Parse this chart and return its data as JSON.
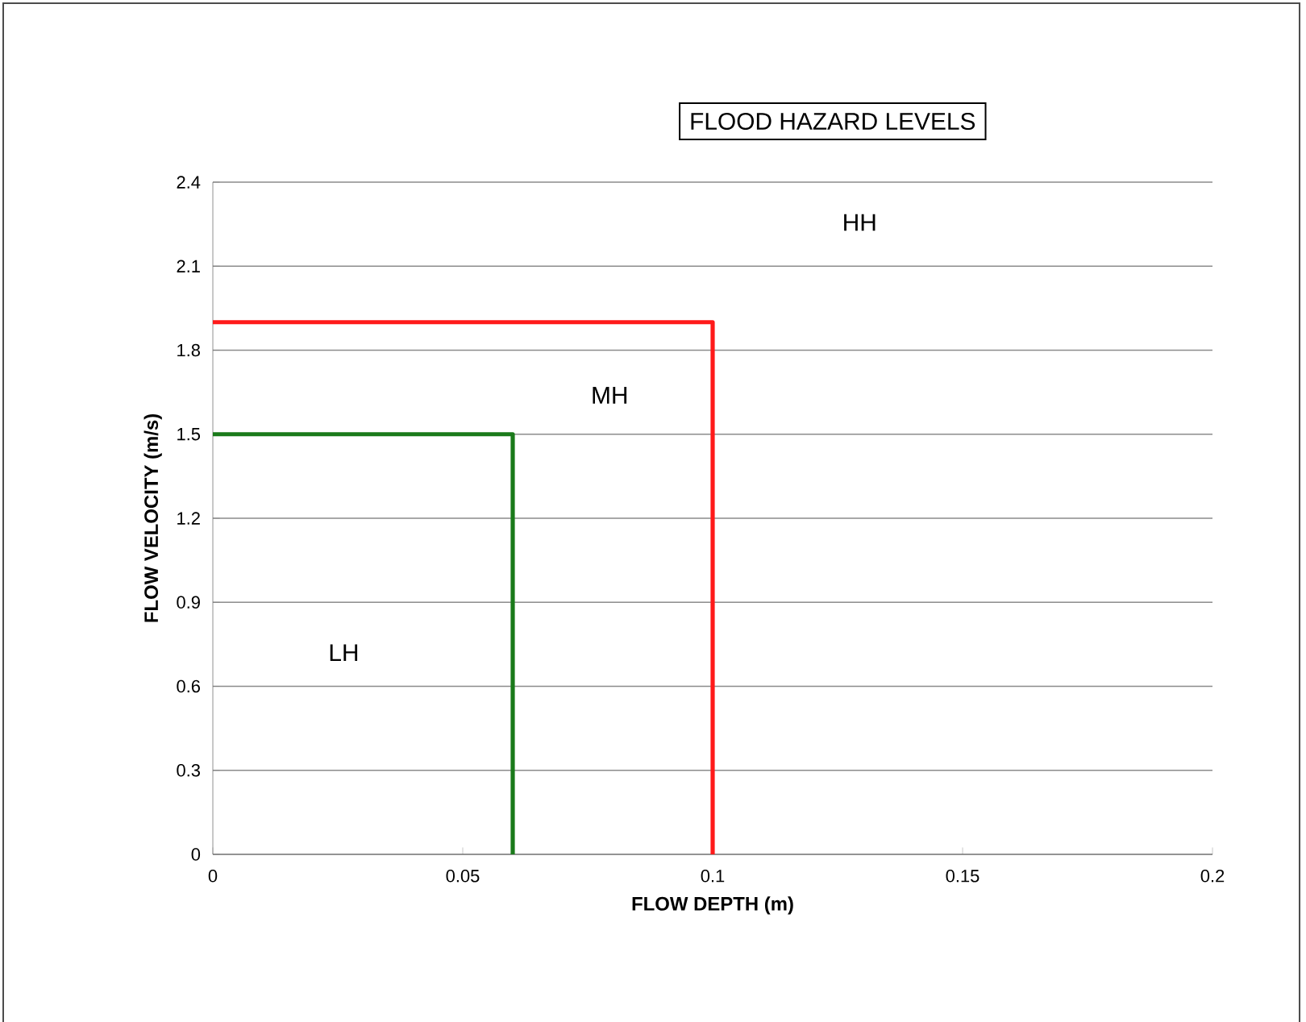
{
  "chart_data": {
    "type": "line",
    "title": "FLOOD HAZARD LEVELS",
    "xlabel": "FLOW DEPTH (m)",
    "ylabel": "FLOW VELOCITY (m/s)",
    "series": [
      {
        "x": [
          0,
          0.06,
          0.06
        ],
        "values": [
          1.5,
          1.5,
          0
        ],
        "color": "#1a7a1a"
      },
      {
        "x": [
          0,
          0.1,
          0.1
        ],
        "values": [
          1.9,
          1.9,
          0
        ],
        "color": "#ff1a1a"
      }
    ],
    "xlim": [
      0,
      0.2
    ],
    "xticks": [
      0,
      0.05,
      0.1,
      0.15,
      0.2
    ],
    "ylim": [
      0,
      2.4
    ],
    "yticks": [
      0,
      0.3,
      0.6,
      0.9,
      1.2,
      1.5,
      1.8,
      2.1,
      2.4
    ],
    "grid": "y",
    "legend": false,
    "marker": "none",
    "line_style": "solid",
    "annotations": [
      "LH",
      "MH",
      "HH"
    ]
  }
}
